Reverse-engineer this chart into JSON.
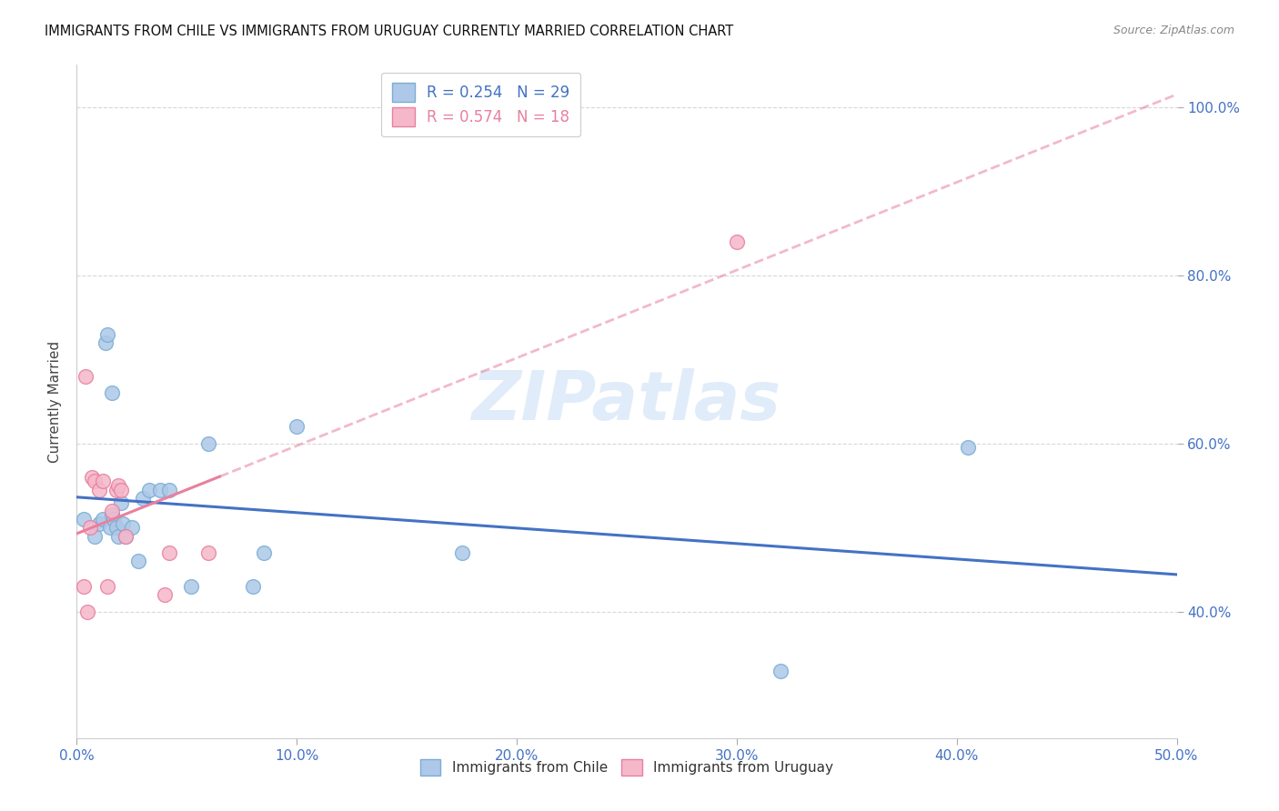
{
  "title": "IMMIGRANTS FROM CHILE VS IMMIGRANTS FROM URUGUAY CURRENTLY MARRIED CORRELATION CHART",
  "source": "Source: ZipAtlas.com",
  "ylabel": "Currently Married",
  "xlim": [
    0.0,
    0.5
  ],
  "ylim": [
    0.25,
    1.05
  ],
  "xtick_labels": [
    "0.0%",
    "10.0%",
    "20.0%",
    "30.0%",
    "40.0%",
    "50.0%"
  ],
  "xtick_vals": [
    0.0,
    0.1,
    0.2,
    0.3,
    0.4,
    0.5
  ],
  "ytick_labels": [
    "40.0%",
    "60.0%",
    "80.0%",
    "100.0%"
  ],
  "ytick_vals": [
    0.4,
    0.6,
    0.8,
    1.0
  ],
  "grid_color": "#d8d8d8",
  "background_color": "#ffffff",
  "chile_color": "#adc8e8",
  "chile_edge_color": "#7badd4",
  "uruguay_color": "#f5b8cb",
  "uruguay_edge_color": "#e8809e",
  "trend_chile_color": "#4472c4",
  "trend_uruguay_color": "#e8809e",
  "r_chile": 0.254,
  "n_chile": 29,
  "r_uruguay": 0.574,
  "n_uruguay": 18,
  "legend_label_chile": "Immigrants from Chile",
  "legend_label_uruguay": "Immigrants from Uruguay",
  "watermark": "ZIPatlas",
  "chile_x": [
    0.003,
    0.008,
    0.01,
    0.012,
    0.013,
    0.014,
    0.015,
    0.016,
    0.016,
    0.017,
    0.018,
    0.019,
    0.02,
    0.021,
    0.022,
    0.025,
    0.028,
    0.03,
    0.033,
    0.038,
    0.042,
    0.052,
    0.06,
    0.08,
    0.085,
    0.1,
    0.175,
    0.32,
    0.405
  ],
  "chile_y": [
    0.51,
    0.49,
    0.505,
    0.51,
    0.72,
    0.73,
    0.5,
    0.66,
    0.515,
    0.51,
    0.5,
    0.49,
    0.53,
    0.505,
    0.49,
    0.5,
    0.46,
    0.535,
    0.545,
    0.545,
    0.545,
    0.43,
    0.6,
    0.43,
    0.47,
    0.62,
    0.47,
    0.33,
    0.595
  ],
  "uruguay_x": [
    0.003,
    0.004,
    0.005,
    0.006,
    0.007,
    0.008,
    0.01,
    0.012,
    0.014,
    0.016,
    0.018,
    0.019,
    0.02,
    0.022,
    0.04,
    0.042,
    0.06,
    0.3
  ],
  "uruguay_y": [
    0.43,
    0.68,
    0.4,
    0.5,
    0.56,
    0.555,
    0.545,
    0.555,
    0.43,
    0.52,
    0.545,
    0.55,
    0.545,
    0.49,
    0.42,
    0.47,
    0.47,
    0.84
  ],
  "marker_size": 130,
  "trend_dash_start_uruguay": 0.065
}
